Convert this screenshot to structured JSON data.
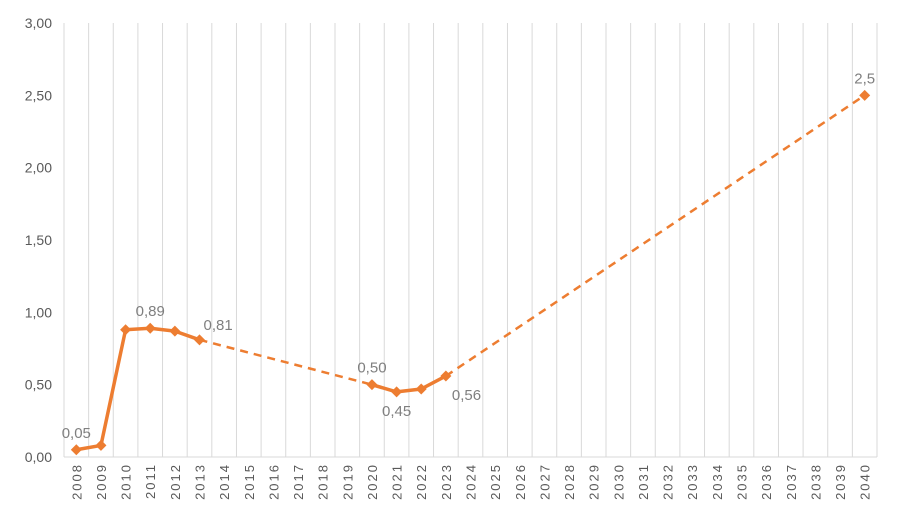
{
  "chart_data": {
    "type": "line",
    "colors": {
      "series": "#ED7D31",
      "grid": "#D9D9D9",
      "axis_text": "#595959",
      "label_text": "#7F7F7F"
    },
    "ylim": [
      0,
      3
    ],
    "yticks": [
      {
        "value": 0,
        "label": "0,00"
      },
      {
        "value": 0.5,
        "label": "0,50"
      },
      {
        "value": 1,
        "label": "1,00"
      },
      {
        "value": 1.5,
        "label": "1,50"
      },
      {
        "value": 2,
        "label": "2,00"
      },
      {
        "value": 2.5,
        "label": "2,50"
      },
      {
        "value": 3,
        "label": "3,00"
      }
    ],
    "categories": [
      "2008",
      "2009",
      "2010",
      "2011",
      "2012",
      "2013",
      "2014",
      "2015",
      "2016",
      "2017",
      "2018",
      "2019",
      "2020",
      "2021",
      "2022",
      "2023",
      "2024",
      "2025",
      "2026",
      "2027",
      "2028",
      "2029",
      "2030",
      "2031",
      "2032",
      "2033",
      "2034",
      "2035",
      "2036",
      "2037",
      "2038",
      "2039",
      "2040"
    ],
    "grid": "vertical",
    "legend": "none",
    "series": [
      {
        "style": "solid",
        "points": [
          {
            "x": "2008",
            "y": 0.05
          },
          {
            "x": "2009",
            "y": 0.08
          },
          {
            "x": "2010",
            "y": 0.88
          },
          {
            "x": "2011",
            "y": 0.89
          },
          {
            "x": "2012",
            "y": 0.87
          },
          {
            "x": "2013",
            "y": 0.81
          }
        ]
      },
      {
        "style": "solid",
        "points": [
          {
            "x": "2020",
            "y": 0.5
          },
          {
            "x": "2021",
            "y": 0.45
          },
          {
            "x": "2022",
            "y": 0.47
          },
          {
            "x": "2023",
            "y": 0.56
          }
        ]
      },
      {
        "style": "dashed",
        "points": [
          {
            "x": "2013",
            "y": 0.81
          },
          {
            "x": "2020",
            "y": 0.5
          }
        ]
      },
      {
        "style": "dashed",
        "points": [
          {
            "x": "2023",
            "y": 0.56
          },
          {
            "x": "2040",
            "y": 2.5
          }
        ]
      }
    ],
    "markers": [
      {
        "x": "2008",
        "y": 0.05
      },
      {
        "x": "2009",
        "y": 0.08
      },
      {
        "x": "2010",
        "y": 0.88
      },
      {
        "x": "2011",
        "y": 0.89
      },
      {
        "x": "2012",
        "y": 0.87
      },
      {
        "x": "2013",
        "y": 0.81
      },
      {
        "x": "2020",
        "y": 0.5
      },
      {
        "x": "2021",
        "y": 0.45
      },
      {
        "x": "2022",
        "y": 0.47
      },
      {
        "x": "2023",
        "y": 0.56
      },
      {
        "x": "2040",
        "y": 2.5
      }
    ],
    "data_labels": [
      {
        "x": "2008",
        "y": 0.05,
        "text": "0,05",
        "position": "above"
      },
      {
        "x": "2011",
        "y": 0.89,
        "text": "0,89",
        "position": "above"
      },
      {
        "x": "2013",
        "y": 0.81,
        "text": "0,81",
        "position": "above-right"
      },
      {
        "x": "2020",
        "y": 0.5,
        "text": "0,50",
        "position": "above"
      },
      {
        "x": "2021",
        "y": 0.45,
        "text": "0,45",
        "position": "below"
      },
      {
        "x": "2023",
        "y": 0.56,
        "text": "0,56",
        "position": "below-right"
      },
      {
        "x": "2040",
        "y": 2.5,
        "text": "2,5",
        "position": "above"
      }
    ]
  }
}
